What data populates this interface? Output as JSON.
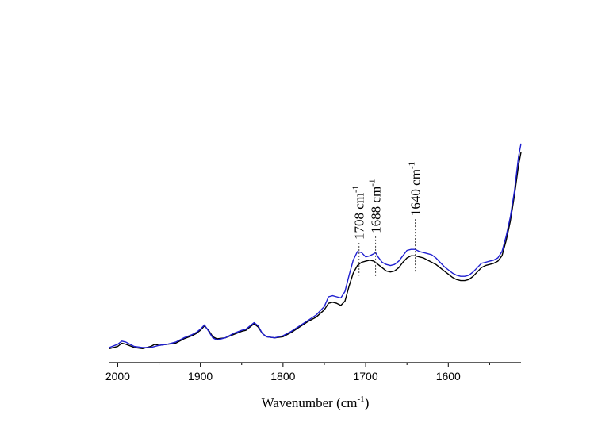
{
  "chart_data": {
    "type": "line",
    "title": "",
    "xlabel": "Wavenumber (cm",
    "xlabel_sup": "-1",
    "xlabel_tail": ")",
    "ylabel": "",
    "x_reversed": true,
    "xlim": [
      2010,
      1512
    ],
    "ylim": [
      0,
      1
    ],
    "x_ticks": [
      "2000",
      "1900",
      "1800",
      "1700",
      "1600"
    ],
    "y_axis_visible": false,
    "grid": false,
    "legend": "none",
    "series": [
      {
        "color": "#000000",
        "points": [
          [
            2010,
            0.01
          ],
          [
            2000,
            0.02
          ],
          [
            1995,
            0.035
          ],
          [
            1990,
            0.03
          ],
          [
            1980,
            0.015
          ],
          [
            1970,
            0.01
          ],
          [
            1960,
            0.02
          ],
          [
            1955,
            0.03
          ],
          [
            1950,
            0.025
          ],
          [
            1940,
            0.03
          ],
          [
            1930,
            0.035
          ],
          [
            1920,
            0.055
          ],
          [
            1910,
            0.07
          ],
          [
            1905,
            0.08
          ],
          [
            1900,
            0.095
          ],
          [
            1895,
            0.115
          ],
          [
            1890,
            0.095
          ],
          [
            1885,
            0.065
          ],
          [
            1880,
            0.055
          ],
          [
            1870,
            0.06
          ],
          [
            1860,
            0.075
          ],
          [
            1850,
            0.09
          ],
          [
            1845,
            0.095
          ],
          [
            1840,
            0.11
          ],
          [
            1835,
            0.125
          ],
          [
            1830,
            0.11
          ],
          [
            1825,
            0.08
          ],
          [
            1820,
            0.065
          ],
          [
            1810,
            0.06
          ],
          [
            1800,
            0.065
          ],
          [
            1790,
            0.085
          ],
          [
            1780,
            0.11
          ],
          [
            1770,
            0.135
          ],
          [
            1760,
            0.155
          ],
          [
            1750,
            0.19
          ],
          [
            1745,
            0.22
          ],
          [
            1740,
            0.225
          ],
          [
            1735,
            0.22
          ],
          [
            1730,
            0.21
          ],
          [
            1725,
            0.23
          ],
          [
            1720,
            0.3
          ],
          [
            1715,
            0.36
          ],
          [
            1710,
            0.395
          ],
          [
            1705,
            0.41
          ],
          [
            1700,
            0.415
          ],
          [
            1695,
            0.42
          ],
          [
            1690,
            0.415
          ],
          [
            1685,
            0.4
          ],
          [
            1680,
            0.385
          ],
          [
            1675,
            0.37
          ],
          [
            1670,
            0.365
          ],
          [
            1665,
            0.37
          ],
          [
            1660,
            0.385
          ],
          [
            1655,
            0.41
          ],
          [
            1650,
            0.43
          ],
          [
            1645,
            0.44
          ],
          [
            1640,
            0.44
          ],
          [
            1635,
            0.435
          ],
          [
            1630,
            0.43
          ],
          [
            1625,
            0.42
          ],
          [
            1620,
            0.41
          ],
          [
            1615,
            0.4
          ],
          [
            1610,
            0.385
          ],
          [
            1605,
            0.37
          ],
          [
            1600,
            0.355
          ],
          [
            1595,
            0.34
          ],
          [
            1590,
            0.33
          ],
          [
            1585,
            0.325
          ],
          [
            1580,
            0.325
          ],
          [
            1575,
            0.33
          ],
          [
            1570,
            0.345
          ],
          [
            1565,
            0.365
          ],
          [
            1560,
            0.385
          ],
          [
            1555,
            0.395
          ],
          [
            1550,
            0.4
          ],
          [
            1545,
            0.405
          ],
          [
            1540,
            0.415
          ],
          [
            1535,
            0.44
          ],
          [
            1530,
            0.51
          ],
          [
            1525,
            0.6
          ],
          [
            1520,
            0.72
          ],
          [
            1515,
            0.86
          ],
          [
            1512,
            0.92
          ]
        ]
      },
      {
        "color": "#1f1fd0",
        "points": [
          [
            2010,
            0.015
          ],
          [
            2000,
            0.03
          ],
          [
            1995,
            0.045
          ],
          [
            1990,
            0.04
          ],
          [
            1980,
            0.02
          ],
          [
            1970,
            0.015
          ],
          [
            1960,
            0.015
          ],
          [
            1955,
            0.02
          ],
          [
            1950,
            0.025
          ],
          [
            1940,
            0.03
          ],
          [
            1930,
            0.04
          ],
          [
            1920,
            0.06
          ],
          [
            1910,
            0.075
          ],
          [
            1905,
            0.085
          ],
          [
            1900,
            0.1
          ],
          [
            1895,
            0.12
          ],
          [
            1890,
            0.09
          ],
          [
            1885,
            0.06
          ],
          [
            1880,
            0.05
          ],
          [
            1870,
            0.06
          ],
          [
            1860,
            0.08
          ],
          [
            1850,
            0.095
          ],
          [
            1845,
            0.1
          ],
          [
            1840,
            0.115
          ],
          [
            1835,
            0.13
          ],
          [
            1830,
            0.115
          ],
          [
            1825,
            0.08
          ],
          [
            1820,
            0.065
          ],
          [
            1810,
            0.06
          ],
          [
            1800,
            0.07
          ],
          [
            1790,
            0.09
          ],
          [
            1780,
            0.115
          ],
          [
            1770,
            0.14
          ],
          [
            1760,
            0.165
          ],
          [
            1750,
            0.205
          ],
          [
            1745,
            0.25
          ],
          [
            1740,
            0.255
          ],
          [
            1735,
            0.25
          ],
          [
            1730,
            0.245
          ],
          [
            1725,
            0.275
          ],
          [
            1720,
            0.35
          ],
          [
            1715,
            0.42
          ],
          [
            1710,
            0.46
          ],
          [
            1705,
            0.455
          ],
          [
            1700,
            0.435
          ],
          [
            1695,
            0.44
          ],
          [
            1690,
            0.45
          ],
          [
            1688,
            0.455
          ],
          [
            1685,
            0.435
          ],
          [
            1680,
            0.41
          ],
          [
            1675,
            0.4
          ],
          [
            1670,
            0.395
          ],
          [
            1665,
            0.4
          ],
          [
            1660,
            0.415
          ],
          [
            1655,
            0.44
          ],
          [
            1650,
            0.465
          ],
          [
            1645,
            0.47
          ],
          [
            1640,
            0.47
          ],
          [
            1635,
            0.46
          ],
          [
            1630,
            0.455
          ],
          [
            1625,
            0.45
          ],
          [
            1620,
            0.445
          ],
          [
            1615,
            0.43
          ],
          [
            1610,
            0.41
          ],
          [
            1605,
            0.39
          ],
          [
            1600,
            0.375
          ],
          [
            1595,
            0.36
          ],
          [
            1590,
            0.35
          ],
          [
            1585,
            0.345
          ],
          [
            1580,
            0.345
          ],
          [
            1575,
            0.35
          ],
          [
            1570,
            0.365
          ],
          [
            1565,
            0.385
          ],
          [
            1560,
            0.405
          ],
          [
            1555,
            0.41
          ],
          [
            1550,
            0.415
          ],
          [
            1545,
            0.42
          ],
          [
            1540,
            0.43
          ],
          [
            1535,
            0.46
          ],
          [
            1530,
            0.53
          ],
          [
            1525,
            0.62
          ],
          [
            1520,
            0.74
          ],
          [
            1515,
            0.9
          ],
          [
            1512,
            0.96
          ]
        ]
      }
    ],
    "annotations": [
      {
        "x": 1708,
        "label": "1708 cm",
        "sup": "-1",
        "line_top": 0.5
      },
      {
        "x": 1688,
        "label": "1688 cm",
        "sup": "-1",
        "line_top": 0.53
      },
      {
        "x": 1640,
        "label": "1640 cm",
        "sup": "-1",
        "line_top": 0.61
      }
    ]
  }
}
